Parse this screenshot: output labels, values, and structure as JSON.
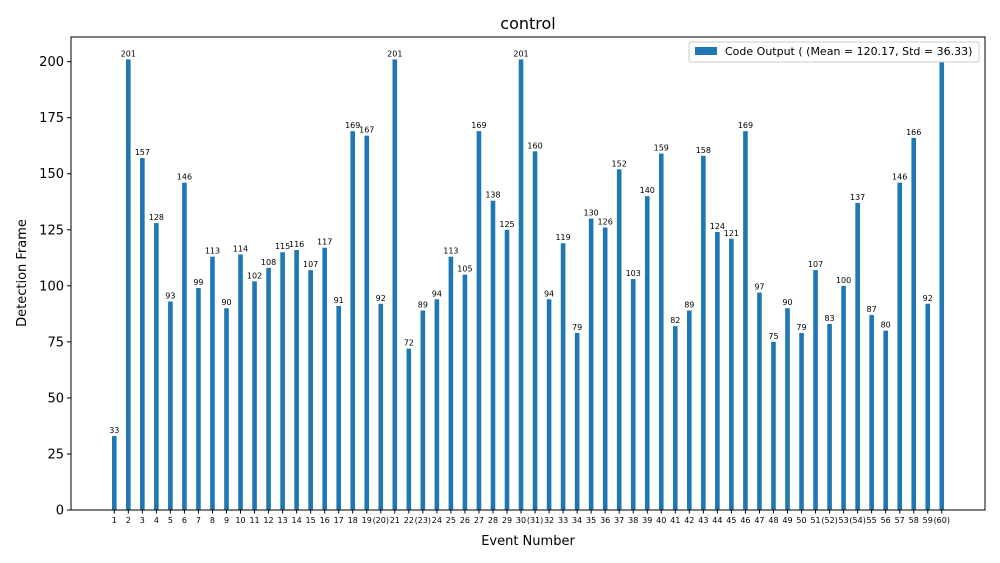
{
  "chart_data": {
    "type": "bar",
    "title": "control",
    "xlabel": "Event Number",
    "ylabel": "Detection Frame",
    "ylim": [
      0,
      211
    ],
    "yticks": [
      0,
      25,
      50,
      75,
      100,
      125,
      150,
      175,
      200
    ],
    "categories": [
      "1",
      "2",
      "3",
      "4",
      "5",
      "6",
      "7",
      "8",
      "9",
      "10",
      "11",
      "12",
      "13",
      "14",
      "15",
      "16",
      "17",
      "18",
      "19",
      "(20)",
      "21",
      "22",
      "(23)",
      "24",
      "25",
      "26",
      "27",
      "28",
      "29",
      "30",
      "(31)",
      "32",
      "33",
      "34",
      "35",
      "36",
      "37",
      "38",
      "39",
      "40",
      "41",
      "42",
      "43",
      "44",
      "45",
      "46",
      "47",
      "48",
      "49",
      "50",
      "51",
      "(52)",
      "53",
      "(54)",
      "55",
      "56",
      "57",
      "58",
      "59",
      "(60)"
    ],
    "series": [
      {
        "name": "Code Output ( (Mean = 120.17, Std = 36.33)",
        "color": "#1f77b4",
        "values": [
          33,
          201,
          157,
          128,
          93,
          146,
          99,
          113,
          90,
          114,
          102,
          108,
          115,
          116,
          107,
          117,
          91,
          169,
          167,
          92,
          201,
          72,
          89,
          94,
          113,
          105,
          169,
          138,
          125,
          201,
          160,
          94,
          119,
          79,
          130,
          126,
          152,
          103,
          140,
          159,
          82,
          89,
          158,
          124,
          121,
          169,
          97,
          75,
          90,
          79,
          107,
          83,
          100,
          137,
          87,
          80,
          146,
          166,
          92,
          201
        ]
      }
    ],
    "legend_position": "upper right",
    "grid": false
  }
}
